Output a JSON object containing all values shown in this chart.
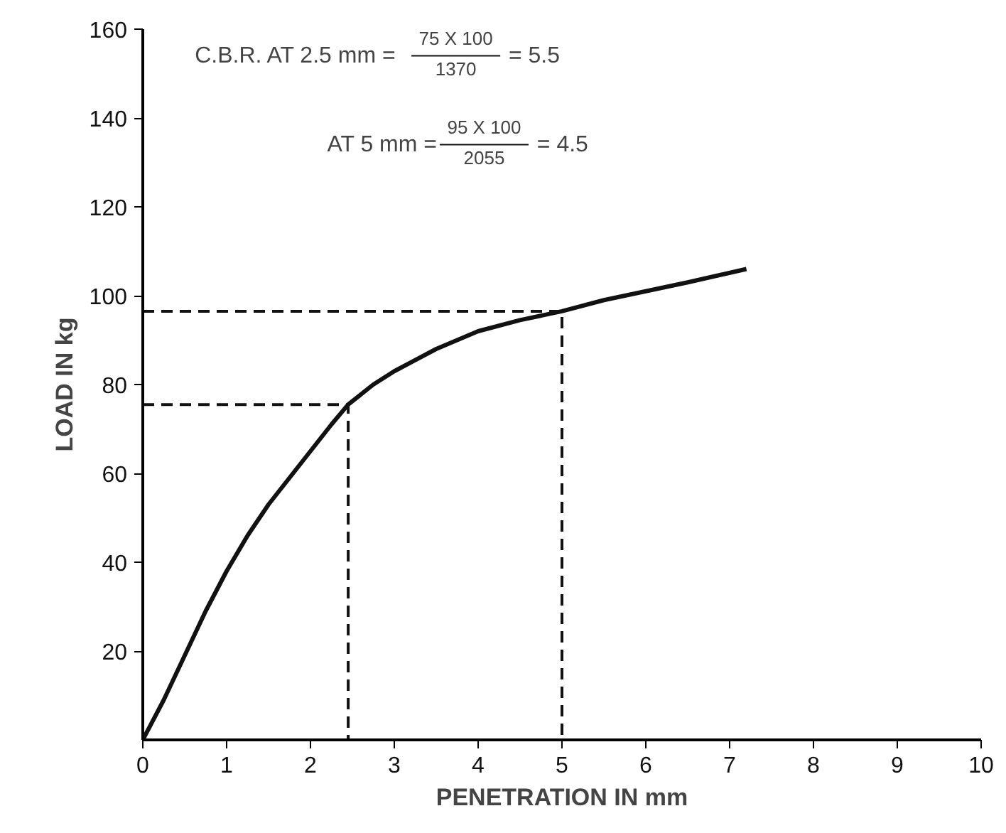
{
  "chart_data": {
    "type": "line",
    "xlabel": "PENETRATION IN mm",
    "ylabel": "LOAD IN kg",
    "x": [
      0,
      0.25,
      0.5,
      0.75,
      1,
      1.25,
      1.5,
      1.75,
      2,
      2.25,
      2.45,
      2.75,
      3,
      3.5,
      4,
      4.5,
      5,
      5.5,
      6,
      6.5,
      7.2
    ],
    "series": [
      {
        "color": "#111111",
        "values": [
          0,
          9,
          19,
          29,
          38,
          46,
          53,
          59,
          65,
          71,
          75.5,
          80,
          83,
          88,
          92,
          94.5,
          96.5,
          99,
          101,
          103,
          106
        ]
      },
      {
        "type": "line",
        "line_style": "dashed",
        "color": "#111111",
        "x": [
          0,
          2.45,
          2.45
        ],
        "values": [
          75.5,
          75.5,
          0
        ]
      },
      {
        "type": "line",
        "line_style": "dashed",
        "color": "#111111",
        "x": [
          0,
          5,
          5
        ],
        "values": [
          96.5,
          96.5,
          0
        ]
      }
    ],
    "xlim": [
      0,
      10
    ],
    "ylim": [
      0,
      160
    ],
    "xticks": [
      0,
      1,
      2,
      3,
      4,
      5,
      6,
      7,
      8,
      9,
      10
    ],
    "yticks": [
      20,
      40,
      60,
      80,
      100,
      120,
      140,
      160
    ],
    "grid": false,
    "marker": "none",
    "line_style": "solid",
    "annotations": [
      "C.B.R. AT 2.5 mm =",
      "75 X 100",
      "1370",
      "= 5.5",
      "AT 5 mm =",
      "95 X 100",
      "2055",
      "= 4.5"
    ]
  }
}
